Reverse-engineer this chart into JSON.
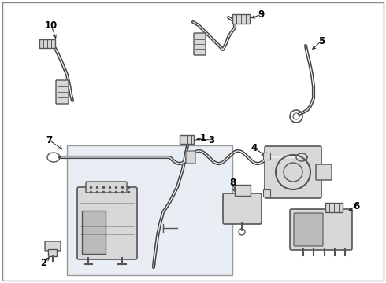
{
  "bg_color": "#ffffff",
  "line_color": "#444444",
  "component_color": "#555555",
  "light_fill": "#d8d8d8",
  "medium_fill": "#bbbbbb",
  "inset_fill": "#e8eef4",
  "label_color": "#000000",
  "border_color": "#cccccc",
  "items": [
    "1",
    "2",
    "3",
    "4",
    "5",
    "6",
    "7",
    "8",
    "9",
    "10"
  ]
}
